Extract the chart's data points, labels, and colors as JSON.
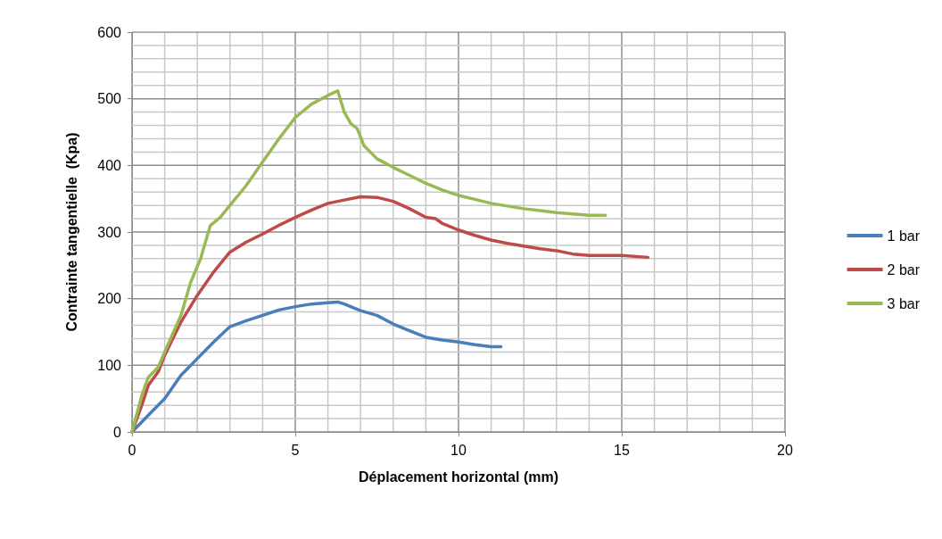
{
  "chart_data": {
    "type": "line",
    "xlabel": "Déplacement horizontal (mm)",
    "ylabel": "Contrainte tangentielle  (Kpa)",
    "xlim": [
      0,
      20
    ],
    "ylim": [
      0,
      600
    ],
    "xticks": [
      0,
      {
        "value": 1,
        "label": null
      },
      {
        "value": 2,
        "label": null
      },
      {
        "value": 3,
        "label": null
      },
      {
        "value": 4,
        "label": null
      },
      5,
      {
        "value": 6,
        "label": null
      },
      {
        "value": 7,
        "label": null
      },
      {
        "value": 8,
        "label": null
      },
      {
        "value": 9,
        "label": null
      },
      10,
      {
        "value": 11,
        "label": null
      },
      {
        "value": 12,
        "label": null
      },
      {
        "value": 13,
        "label": null
      },
      {
        "value": 14,
        "label": null
      },
      15,
      {
        "value": 16,
        "label": null
      },
      {
        "value": 17,
        "label": null
      },
      {
        "value": 18,
        "label": null
      },
      {
        "value": 19,
        "label": null
      },
      20
    ],
    "yticks": [
      0,
      {
        "value": 20,
        "label": null
      },
      {
        "value": 40,
        "label": null
      },
      {
        "value": 60,
        "label": null
      },
      {
        "value": 80,
        "label": null
      },
      100,
      {
        "value": 120,
        "label": null
      },
      {
        "value": 140,
        "label": null
      },
      {
        "value": 160,
        "label": null
      },
      {
        "value": 180,
        "label": null
      },
      200,
      {
        "value": 220,
        "label": null
      },
      {
        "value": 240,
        "label": null
      },
      {
        "value": 260,
        "label": null
      },
      {
        "value": 280,
        "label": null
      },
      300,
      {
        "value": 320,
        "label": null
      },
      {
        "value": 340,
        "label": null
      },
      {
        "value": 360,
        "label": null
      },
      {
        "value": 380,
        "label": null
      },
      400,
      {
        "value": 420,
        "label": null
      },
      {
        "value": 440,
        "label": null
      },
      {
        "value": 460,
        "label": null
      },
      {
        "value": 480,
        "label": null
      },
      500,
      {
        "value": 520,
        "label": null
      },
      {
        "value": 540,
        "label": null
      },
      {
        "value": 560,
        "label": null
      },
      {
        "value": 580,
        "label": null
      },
      600
    ],
    "grid": true,
    "legend": "right",
    "marker": "none",
    "line_style": "solid",
    "series": [
      {
        "name": "1 bar",
        "color": "#4a7ebb",
        "x": [
          0,
          0.5,
          1,
          1.5,
          2,
          2.5,
          3,
          3.5,
          4,
          4.5,
          5,
          5.5,
          6,
          6.3,
          6.5,
          7,
          7.5,
          8,
          8.5,
          9,
          9.5,
          10,
          10.5,
          11,
          11.3
        ],
        "values": [
          0,
          25,
          50,
          85,
          110,
          135,
          158,
          167,
          175,
          183,
          188,
          192,
          194,
          195,
          192,
          182,
          175,
          162,
          152,
          142,
          138,
          135,
          131,
          128,
          128
        ]
      },
      {
        "name": "2 bar",
        "color": "#be4b48",
        "x": [
          0,
          0.3,
          0.5,
          0.8,
          1,
          1.5,
          2,
          2.5,
          3,
          3.5,
          4,
          4.5,
          5,
          5.5,
          6,
          6.5,
          7,
          7.5,
          8,
          8.5,
          9,
          9.3,
          9.5,
          10,
          10.5,
          11,
          11.5,
          12,
          12.5,
          13,
          13.5,
          14,
          15,
          15.8
        ],
        "values": [
          0,
          40,
          70,
          90,
          115,
          165,
          205,
          240,
          270,
          285,
          297,
          310,
          322,
          333,
          343,
          348,
          353,
          352,
          346,
          335,
          322,
          320,
          313,
          303,
          295,
          288,
          283,
          279,
          275,
          272,
          267,
          265,
          265,
          262
        ]
      },
      {
        "name": "3 bar",
        "color": "#98b954",
        "x": [
          0,
          0.3,
          0.5,
          0.8,
          1,
          1.5,
          1.8,
          2.1,
          2.4,
          2.7,
          3,
          3.5,
          4,
          4.5,
          5,
          5.5,
          6,
          6.3,
          6.5,
          6.7,
          6.9,
          7.1,
          7.5,
          8,
          8.5,
          9,
          9.5,
          10,
          10.5,
          11,
          11.5,
          12,
          12.5,
          13,
          13.5,
          14,
          14.5
        ],
        "values": [
          0,
          55,
          82,
          97,
          120,
          175,
          225,
          260,
          310,
          322,
          340,
          370,
          405,
          440,
          472,
          492,
          505,
          512,
          480,
          463,
          455,
          430,
          410,
          397,
          385,
          373,
          363,
          355,
          349,
          343,
          339,
          335,
          332,
          329,
          327,
          325,
          325
        ]
      }
    ]
  }
}
